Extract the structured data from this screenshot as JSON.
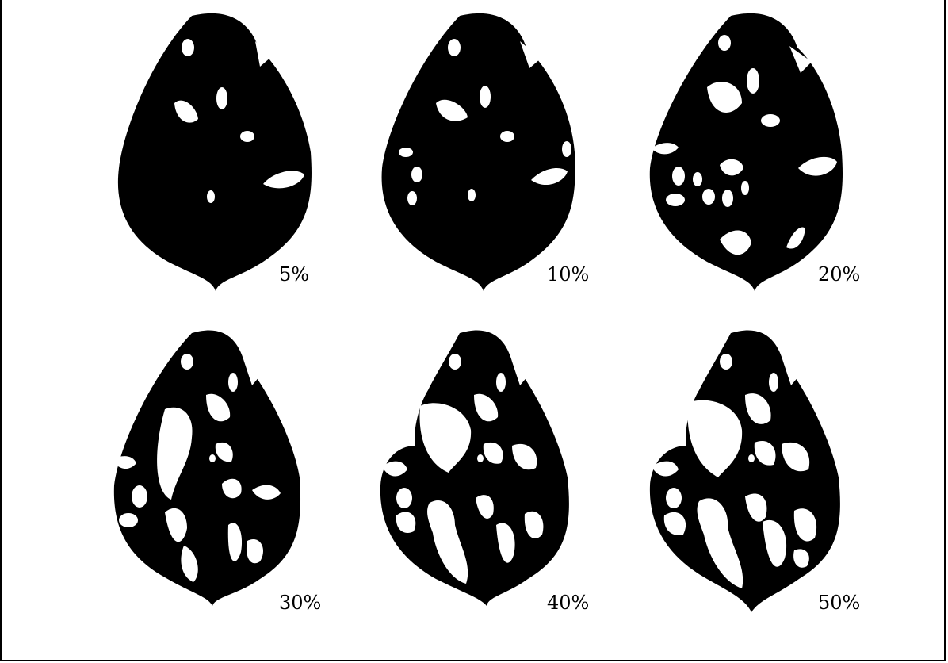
{
  "colors": {
    "leaf": "#000000",
    "damage": "#ffffff",
    "frame": "#000000"
  },
  "icons": [
    "leaf-icon"
  ],
  "leaves": [
    {
      "label": "5%",
      "defoliation_pct": 5
    },
    {
      "label": "10%",
      "defoliation_pct": 10
    },
    {
      "label": "20%",
      "defoliation_pct": 20
    },
    {
      "label": "30%",
      "defoliation_pct": 30
    },
    {
      "label": "40%",
      "defoliation_pct": 40
    },
    {
      "label": "50%",
      "defoliation_pct": 50
    }
  ]
}
